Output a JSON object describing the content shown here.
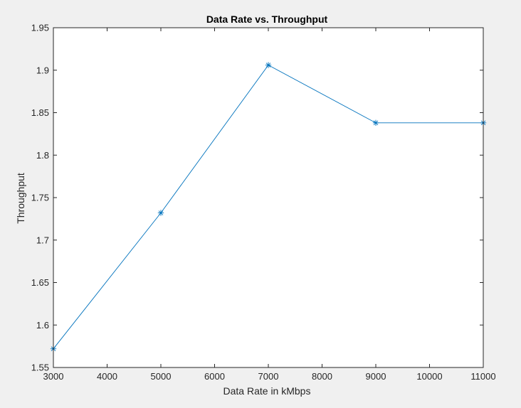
{
  "chart_data": {
    "type": "line",
    "title": "Data Rate vs. Throughput",
    "xlabel": "Data Rate in kMbps",
    "ylabel": "Throughput",
    "xlim": [
      3000,
      11000
    ],
    "ylim": [
      1.55,
      1.95
    ],
    "x_ticks": [
      3000,
      4000,
      5000,
      6000,
      7000,
      8000,
      9000,
      10000,
      11000
    ],
    "y_ticks": [
      1.55,
      1.6,
      1.65,
      1.7,
      1.75,
      1.8,
      1.85,
      1.9,
      1.95
    ],
    "x_tick_labels": [
      "3000",
      "4000",
      "5000",
      "6000",
      "7000",
      "8000",
      "9000",
      "10000",
      "11000"
    ],
    "y_tick_labels": [
      "1.55",
      "1.6",
      "1.65",
      "1.7",
      "1.75",
      "1.8",
      "1.85",
      "1.9",
      "1.95"
    ],
    "grid": false,
    "marker": "asterisk",
    "series": [
      {
        "x": [
          3000,
          5000,
          7000,
          9000,
          11000
        ],
        "y": [
          1.572,
          1.732,
          1.906,
          1.838,
          1.838
        ],
        "color": "#0072bd"
      }
    ],
    "colors": {
      "figure_background": "#f0f0f0",
      "axes_background": "#ffffff",
      "axes_color": "#262626"
    }
  }
}
